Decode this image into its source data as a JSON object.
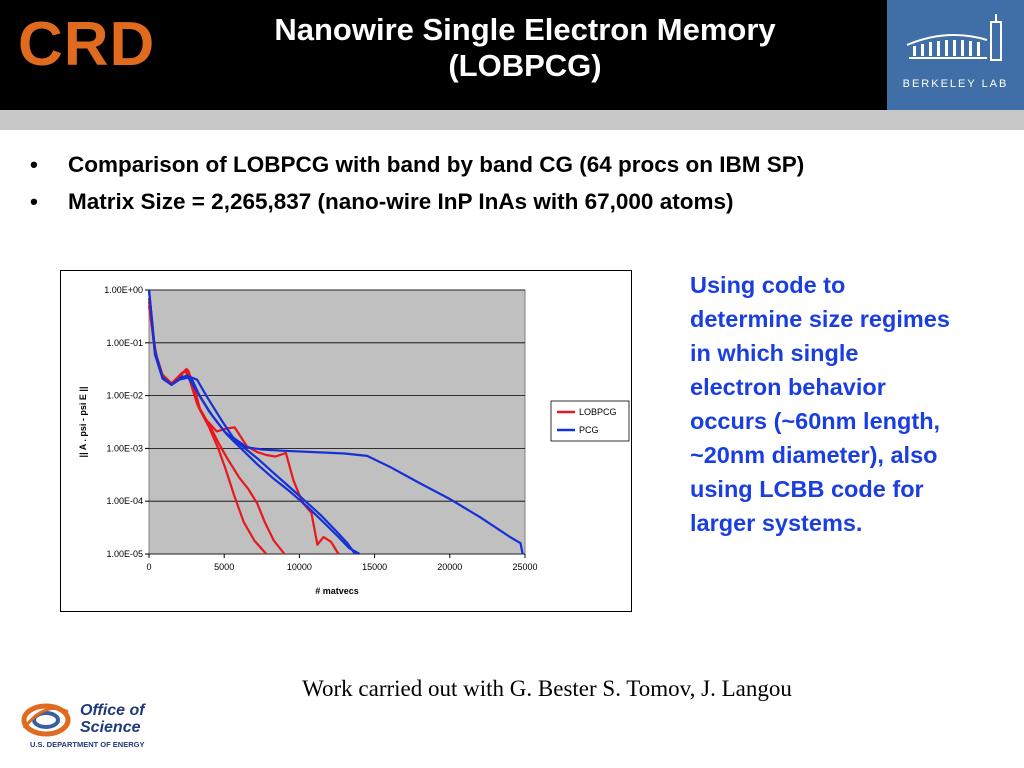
{
  "header": {
    "logo_text": "CRD",
    "title_line1": "Nanowire Single Electron Memory",
    "title_line2": "(LOBPCG)",
    "lab_logo_text": "BERKELEY LAB"
  },
  "bullets": [
    "Comparison of  LOBPCG with band by band CG (64 procs on IBM SP)",
    "Matrix Size = 2,265,837  (nano-wire InP InAs with 67,000 atoms)"
  ],
  "bullet_glyph": "•",
  "side_text": "Using code to determine size regimes in which single electron behavior occurs (~60nm length, ~20nm diameter), also using LCBB code for larger systems.",
  "credit": "Work carried out with G. Bester S. Tomov, J. Langou",
  "footer_logo": {
    "line1": "Office of",
    "line2": "Science",
    "line3": "U.S. DEPARTMENT OF ENERGY"
  },
  "colors": {
    "accent_orange": "#e06a1e",
    "side_text_blue": "#1a3ee0",
    "lobpcg": "#e8171b",
    "pcg": "#1531d6",
    "plot_bg": "#c0c0c0"
  },
  "chart_data": {
    "type": "line",
    "xlabel": "# matvecs",
    "ylabel": "|| A . psi - psi E ||",
    "xlim": [
      0,
      25000
    ],
    "ylim": [
      1e-05,
      1
    ],
    "yscale": "log",
    "x_ticks": [
      "0",
      "5000",
      "10000",
      "15000",
      "20000",
      "25000"
    ],
    "y_ticks": [
      "1.00E+00",
      "1.00E-01",
      "1.00E-02",
      "1.00E-03",
      "1.00E-04",
      "1.00E-05"
    ],
    "grid": "horizontal",
    "legend": "right",
    "series": [
      {
        "name": "LOBPCG",
        "color": "#e8171b",
        "lines": [
          [
            [
              0,
              0.6
            ],
            [
              300,
              0.12
            ],
            [
              600,
              0.04
            ],
            [
              1000,
              0.02
            ],
            [
              1500,
              0.016
            ],
            [
              2000,
              0.022
            ],
            [
              2400,
              0.03
            ],
            [
              2700,
              0.02
            ],
            [
              3200,
              0.007
            ],
            [
              3800,
              0.0035
            ],
            [
              4500,
              0.0021
            ],
            [
              5200,
              0.0024
            ],
            [
              5700,
              0.0025
            ],
            [
              6500,
              0.0011
            ],
            [
              7200,
              0.00085
            ],
            [
              7800,
              0.00075
            ],
            [
              8400,
              0.0007
            ],
            [
              9100,
              0.00082
            ],
            [
              9600,
              0.00025
            ],
            [
              10200,
              9.5e-05
            ],
            [
              10800,
              6e-05
            ],
            [
              11200,
              1.5e-05
            ],
            [
              11600,
              2.1e-05
            ],
            [
              12100,
              1.7e-05
            ],
            [
              12600,
              1e-05
            ]
          ],
          [
            [
              0,
              0.5
            ],
            [
              400,
              0.07
            ],
            [
              900,
              0.025
            ],
            [
              1500,
              0.017
            ],
            [
              2000,
              0.023
            ],
            [
              2500,
              0.032
            ],
            [
              2800,
              0.02
            ],
            [
              3300,
              0.006
            ],
            [
              4000,
              0.0025
            ],
            [
              4600,
              0.001
            ],
            [
              5100,
              0.0004
            ],
            [
              5700,
              0.00012
            ],
            [
              6300,
              4e-05
            ],
            [
              7000,
              1.8e-05
            ],
            [
              7800,
              1e-05
            ]
          ],
          [
            [
              0,
              0.7
            ],
            [
              400,
              0.06
            ],
            [
              900,
              0.023
            ],
            [
              1500,
              0.017
            ],
            [
              2200,
              0.027
            ],
            [
              2600,
              0.03
            ],
            [
              2900,
              0.018
            ],
            [
              3400,
              0.0055
            ],
            [
              4100,
              0.0025
            ],
            [
              4600,
              0.0013
            ],
            [
              5200,
              0.00065
            ],
            [
              6000,
              0.00028
            ],
            [
              6600,
              0.00017
            ],
            [
              7200,
              9e-05
            ],
            [
              7700,
              4e-05
            ],
            [
              8300,
              1.8e-05
            ],
            [
              9000,
              1e-05
            ]
          ]
        ]
      },
      {
        "name": "PCG",
        "color": "#1531d6",
        "lines": [
          [
            [
              0,
              1
            ],
            [
              400,
              0.06
            ],
            [
              900,
              0.021
            ],
            [
              1500,
              0.016
            ],
            [
              2000,
              0.02
            ],
            [
              2500,
              0.024
            ],
            [
              3200,
              0.02
            ],
            [
              3800,
              0.01
            ],
            [
              4800,
              0.0035
            ],
            [
              5600,
              0.0016
            ],
            [
              6500,
              0.00105
            ],
            [
              7600,
              0.00095
            ],
            [
              9000,
              0.0009
            ],
            [
              11000,
              0.00085
            ],
            [
              13000,
              0.0008
            ],
            [
              14500,
              0.00072
            ],
            [
              16000,
              0.00045
            ],
            [
              18000,
              0.00022
            ],
            [
              20000,
              0.00011
            ],
            [
              22000,
              5e-05
            ],
            [
              24000,
              2.1e-05
            ],
            [
              24700,
              1.6e-05
            ],
            [
              24850,
              1e-05
            ]
          ],
          [
            [
              0,
              1
            ],
            [
              400,
              0.07
            ],
            [
              900,
              0.022
            ],
            [
              1500,
              0.016
            ],
            [
              2000,
              0.02
            ],
            [
              2600,
              0.022
            ],
            [
              3200,
              0.012
            ],
            [
              4000,
              0.005
            ],
            [
              5000,
              0.0021
            ],
            [
              6200,
              0.0011
            ],
            [
              7200,
              0.00065
            ],
            [
              8200,
              0.00036
            ],
            [
              9300,
              0.00019
            ],
            [
              10400,
              0.0001
            ],
            [
              11400,
              5.5e-05
            ],
            [
              12400,
              2.8e-05
            ],
            [
              13200,
              1.6e-05
            ],
            [
              13700,
              1e-05
            ]
          ],
          [
            [
              0,
              1
            ],
            [
              400,
              0.07
            ],
            [
              900,
              0.022
            ],
            [
              1500,
              0.016
            ],
            [
              2200,
              0.023
            ],
            [
              2800,
              0.022
            ],
            [
              3400,
              0.0095
            ],
            [
              4200,
              0.0042
            ],
            [
              5200,
              0.0018
            ],
            [
              6200,
              0.00095
            ],
            [
              7200,
              0.0005
            ],
            [
              8200,
              0.00028
            ],
            [
              9400,
              0.00015
            ],
            [
              10500,
              8e-05
            ],
            [
              11600,
              4e-05
            ],
            [
              12600,
              2.1e-05
            ],
            [
              13300,
              1.3e-05
            ],
            [
              14000,
              1e-05
            ]
          ]
        ]
      }
    ]
  }
}
